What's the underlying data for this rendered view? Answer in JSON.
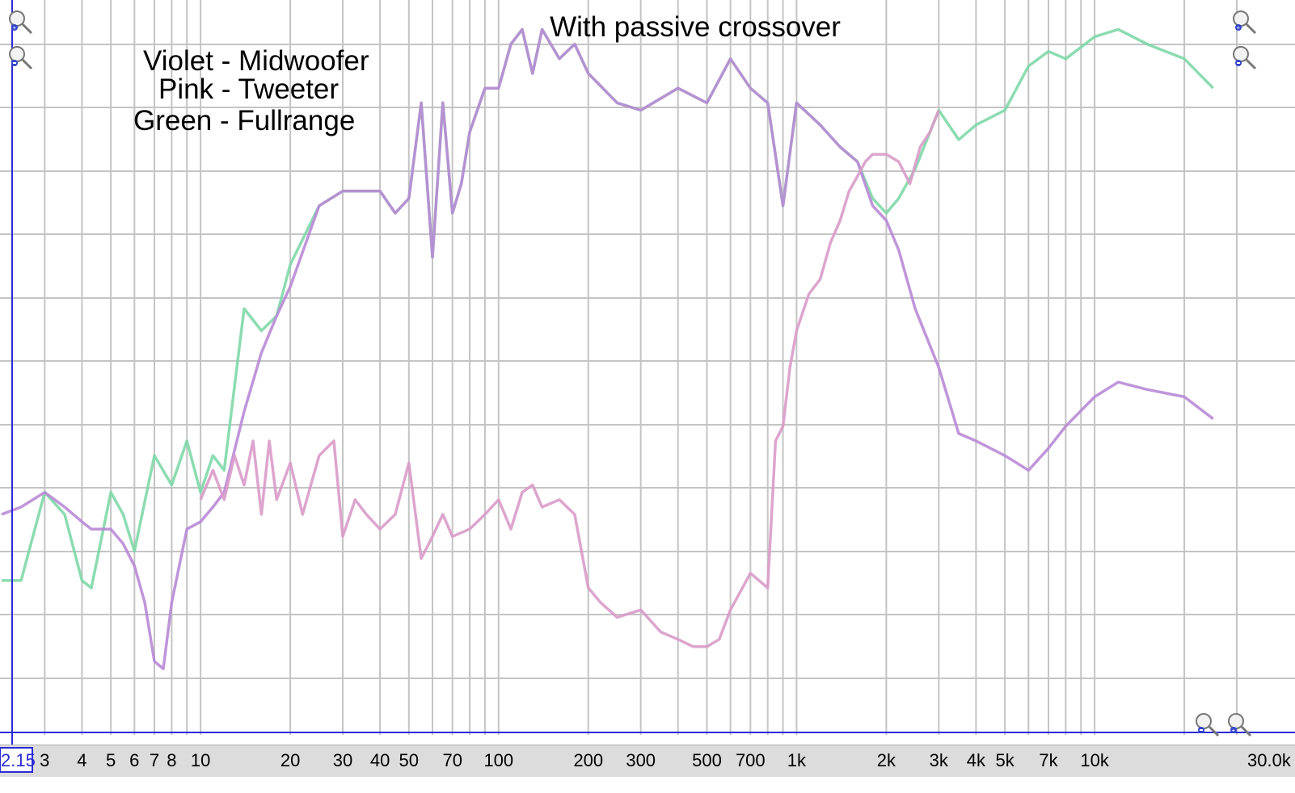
{
  "chart_data": {
    "type": "line",
    "title": "With passive crossover",
    "legend": [
      {
        "text": "Violet - Midwoofer",
        "color": "#b98ad6"
      },
      {
        "text": "Pink - Tweeter",
        "color": "#d99bc9"
      },
      {
        "text": "Green - Fullrange",
        "color": "#7fd8a8"
      }
    ],
    "x_scale": "log",
    "xlim": [
      2.15,
      30000
    ],
    "ylim": [
      0,
      100
    ],
    "x_start_box": "2.15",
    "x_end_label": "30.0k",
    "x_ticks": [
      {
        "v": 3,
        "label": "3"
      },
      {
        "v": 4,
        "label": "4"
      },
      {
        "v": 5,
        "label": "5"
      },
      {
        "v": 6,
        "label": "6"
      },
      {
        "v": 7,
        "label": "7"
      },
      {
        "v": 8,
        "label": "8"
      },
      {
        "v": 10,
        "label": "10"
      },
      {
        "v": 20,
        "label": "20"
      },
      {
        "v": 30,
        "label": "30"
      },
      {
        "v": 40,
        "label": "40"
      },
      {
        "v": 50,
        "label": "50"
      },
      {
        "v": 70,
        "label": "70"
      },
      {
        "v": 100,
        "label": "100"
      },
      {
        "v": 200,
        "label": "200"
      },
      {
        "v": 300,
        "label": "300"
      },
      {
        "v": 500,
        "label": "500"
      },
      {
        "v": 700,
        "label": "700"
      },
      {
        "v": 1000,
        "label": "1k"
      },
      {
        "v": 2000,
        "label": "2k"
      },
      {
        "v": 3000,
        "label": "3k"
      },
      {
        "v": 4000,
        "label": "4k"
      },
      {
        "v": 5000,
        "label": "5k"
      },
      {
        "v": 7000,
        "label": "7k"
      },
      {
        "v": 10000,
        "label": "10k"
      }
    ],
    "grid": true,
    "series": [
      {
        "name": "Fullrange",
        "color": "#7fd8a8",
        "x": [
          2.15,
          2.5,
          3,
          3.5,
          4,
          4.3,
          5,
          5.5,
          6,
          7,
          8,
          9,
          10,
          11,
          12,
          14,
          16,
          18,
          20,
          25,
          30,
          35,
          40,
          45,
          50,
          55,
          60,
          65,
          70,
          75,
          80,
          90,
          100,
          110,
          120,
          130,
          140,
          160,
          180,
          200,
          250,
          300,
          400,
          500,
          600,
          700,
          800,
          900,
          1000,
          1200,
          1400,
          1600,
          1800,
          2000,
          2200,
          2500,
          3000,
          3500,
          4000,
          5000,
          6000,
          7000,
          8000,
          10000,
          12000,
          15000,
          20000,
          25000
        ],
        "y": [
          21,
          21,
          33,
          30,
          21,
          20,
          33,
          30,
          25,
          38,
          34,
          40,
          33,
          38,
          36,
          58,
          55,
          57,
          64,
          72,
          74,
          74,
          74,
          71,
          73,
          86,
          65,
          86,
          71,
          75,
          82,
          88,
          88,
          94,
          96,
          90,
          96,
          92,
          94,
          90,
          86,
          85,
          88,
          86,
          92,
          88,
          86,
          72,
          86,
          83,
          80,
          78,
          73,
          71,
          73,
          77,
          85,
          81,
          83,
          85,
          91,
          93,
          92,
          95,
          96,
          94,
          92,
          88
        ]
      },
      {
        "name": "Midwoofer",
        "color": "#b98ad6",
        "x": [
          2.15,
          2.5,
          3,
          3.5,
          4,
          4.3,
          5,
          5.5,
          6,
          6.5,
          7,
          7.5,
          8,
          9,
          10,
          11,
          12,
          14,
          16,
          18,
          20,
          25,
          30,
          35,
          40,
          45,
          50,
          55,
          60,
          65,
          70,
          75,
          80,
          90,
          100,
          110,
          120,
          130,
          140,
          160,
          180,
          200,
          250,
          300,
          400,
          500,
          600,
          700,
          800,
          900,
          1000,
          1200,
          1400,
          1600,
          1800,
          2000,
          2200,
          2500,
          3000,
          3500,
          4000,
          5000,
          6000,
          7000,
          8000,
          10000,
          12000,
          15000,
          20000,
          25000
        ],
        "y": [
          30,
          31,
          33,
          31,
          29,
          28,
          28,
          26,
          23,
          18,
          10,
          9,
          18,
          28,
          29,
          31,
          33,
          44,
          52,
          57,
          61,
          72,
          74,
          74,
          74,
          71,
          73,
          86,
          65,
          86,
          71,
          75,
          82,
          88,
          88,
          94,
          96,
          90,
          96,
          92,
          94,
          90,
          86,
          85,
          88,
          86,
          92,
          88,
          86,
          72,
          86,
          83,
          80,
          78,
          72,
          70,
          66,
          58,
          50,
          41,
          40,
          38,
          36,
          39,
          42,
          46,
          48,
          47,
          46,
          43
        ]
      },
      {
        "name": "Tweeter",
        "color": "#d99bc9",
        "x": [
          10,
          11,
          12,
          13,
          14,
          15,
          16,
          17,
          18,
          20,
          22,
          25,
          28,
          30,
          33,
          36,
          40,
          45,
          50,
          55,
          60,
          65,
          70,
          80,
          90,
          100,
          110,
          120,
          130,
          140,
          160,
          180,
          200,
          220,
          250,
          300,
          350,
          400,
          450,
          500,
          550,
          600,
          700,
          800,
          850,
          900,
          950,
          1000,
          1100,
          1200,
          1300,
          1400,
          1500,
          1600,
          1700,
          1800,
          1900,
          2000,
          2200,
          2400,
          2600,
          2800,
          3000
        ],
        "y": [
          32,
          36,
          32,
          38,
          34,
          40,
          30,
          40,
          32,
          37,
          30,
          38,
          40,
          27,
          32,
          30,
          28,
          30,
          37,
          24,
          27,
          30,
          27,
          28,
          30,
          32,
          28,
          33,
          34,
          31,
          32,
          30,
          20,
          18,
          16,
          17,
          14,
          13,
          12,
          12,
          13,
          17,
          22,
          20,
          40,
          42,
          50,
          55,
          60,
          62,
          67,
          70,
          74,
          76,
          78,
          79,
          79,
          79,
          78,
          75,
          80,
          82,
          85
        ]
      }
    ]
  }
}
